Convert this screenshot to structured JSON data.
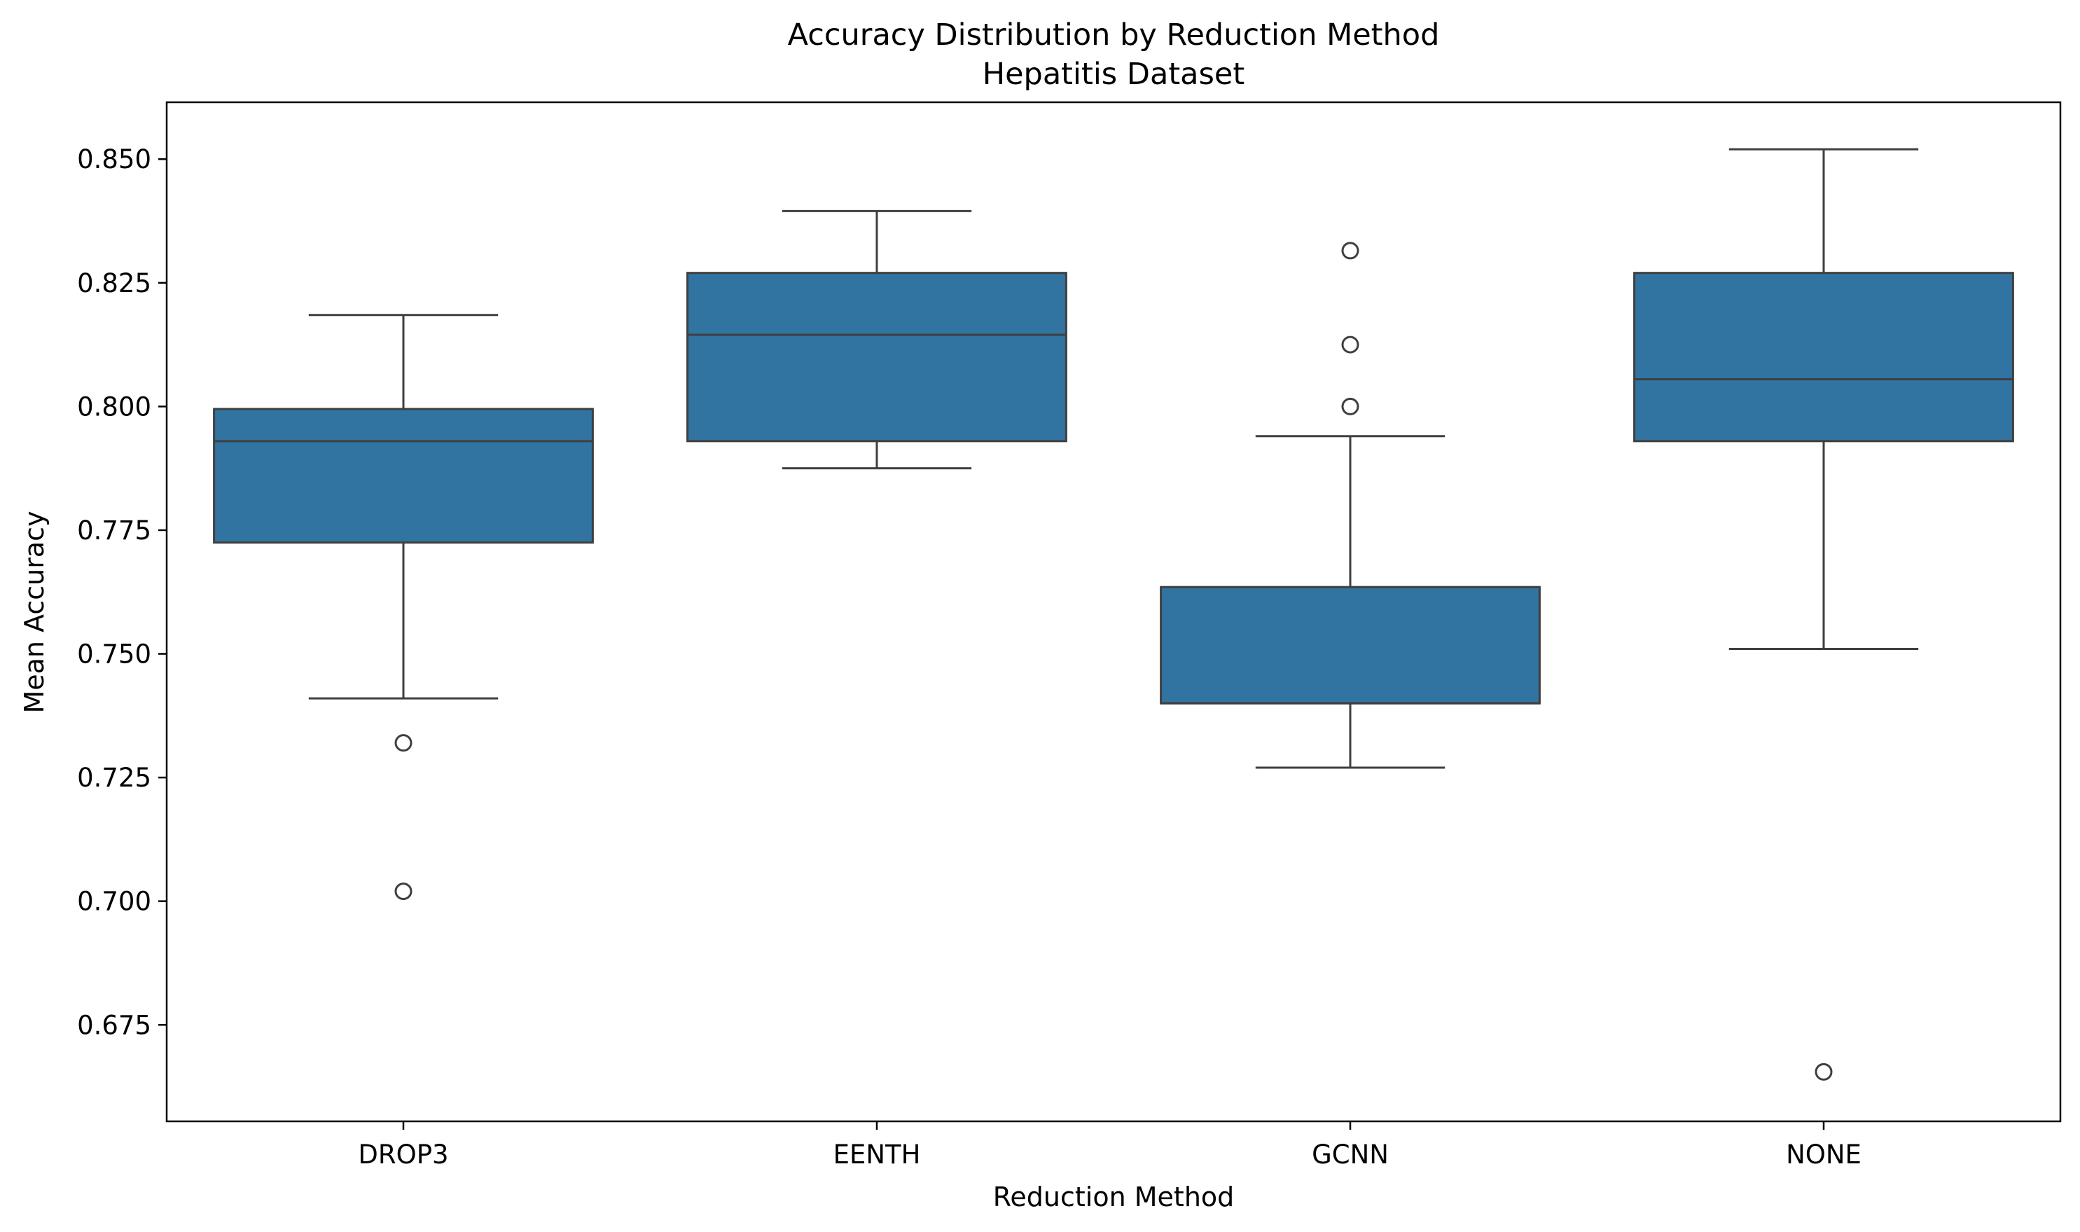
{
  "chart_data": {
    "type": "box",
    "title": "Accuracy Distribution by Reduction Method",
    "subtitle": "Hepatitis Dataset",
    "xlabel": "Reduction Method",
    "ylabel": "Mean Accuracy",
    "ylim": [
      0.6555,
      0.8615
    ],
    "yticks": [
      0.675,
      0.7,
      0.725,
      0.75,
      0.775,
      0.8,
      0.825,
      0.85
    ],
    "ytick_labels": [
      "0.675",
      "0.700",
      "0.725",
      "0.750",
      "0.775",
      "0.800",
      "0.825",
      "0.850"
    ],
    "categories": [
      "DROP3",
      "EENTH",
      "GCNN",
      "NONE"
    ],
    "box_color": "#3274a1",
    "line_color": "#3f3f3f",
    "grid": false,
    "boxes": [
      {
        "category": "DROP3",
        "whisker_low": 0.741,
        "q1": 0.7725,
        "median": 0.793,
        "q3": 0.7995,
        "whisker_high": 0.8185,
        "outliers": [
          0.732,
          0.702
        ]
      },
      {
        "category": "EENTH",
        "whisker_low": 0.7875,
        "q1": 0.793,
        "median": 0.8145,
        "q3": 0.827,
        "whisker_high": 0.8395,
        "outliers": []
      },
      {
        "category": "GCNN",
        "whisker_low": 0.727,
        "q1": 0.74,
        "median": 0.74,
        "q3": 0.7635,
        "whisker_high": 0.794,
        "outliers": [
          0.8315,
          0.8125,
          0.8
        ]
      },
      {
        "category": "NONE",
        "whisker_low": 0.751,
        "q1": 0.793,
        "median": 0.8055,
        "q3": 0.827,
        "whisker_high": 0.852,
        "outliers": [
          0.6655
        ]
      }
    ]
  }
}
